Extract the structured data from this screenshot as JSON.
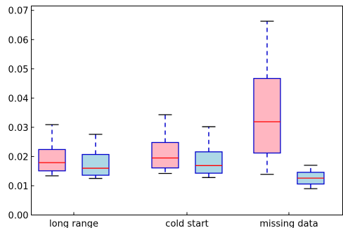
{
  "chart_data": {
    "type": "box",
    "categories": [
      "long range",
      "cold start",
      "missing data"
    ],
    "ylim": [
      0.0,
      0.0715
    ],
    "yticks": [
      0.0,
      0.01,
      0.02,
      0.03,
      0.04,
      0.05,
      0.06,
      0.07
    ],
    "ytick_labels": [
      "0.00",
      "0.01",
      "0.02",
      "0.03",
      "0.04",
      "0.05",
      "0.06",
      "0.07"
    ],
    "series": [
      {
        "fill": "#ffb6c1",
        "boxes": [
          {
            "whislo": 0.0134,
            "q1": 0.0151,
            "med": 0.0179,
            "q3": 0.0224,
            "whishi": 0.0309
          },
          {
            "whislo": 0.0142,
            "q1": 0.0161,
            "med": 0.0195,
            "q3": 0.0248,
            "whishi": 0.0343
          },
          {
            "whislo": 0.0139,
            "q1": 0.0212,
            "med": 0.0319,
            "q3": 0.0467,
            "whishi": 0.0663
          }
        ]
      },
      {
        "fill": "#add8e6",
        "boxes": [
          {
            "whislo": 0.0125,
            "q1": 0.0136,
            "med": 0.016,
            "q3": 0.0207,
            "whishi": 0.0276
          },
          {
            "whislo": 0.0128,
            "q1": 0.0143,
            "med": 0.0169,
            "q3": 0.0216,
            "whishi": 0.0302
          },
          {
            "whislo": 0.009,
            "q1": 0.0106,
            "med": 0.0126,
            "q3": 0.0146,
            "whishi": 0.017
          }
        ]
      }
    ],
    "box_edge_color": "#0000cc",
    "whisker_color": "#0000cc",
    "median_color": "#ff0000",
    "cap_color": "#000000",
    "grid": false
  }
}
